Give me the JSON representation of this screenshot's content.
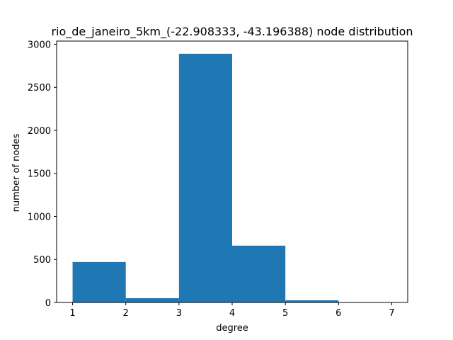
{
  "chart_data": {
    "type": "bar",
    "title": "rio_de_janeiro_5km_(-22.908333, -43.196388) node distribution",
    "xlabel": "degree",
    "ylabel": "number of nodes",
    "bins": [
      {
        "x0": 1,
        "x1": 2,
        "value": 470
      },
      {
        "x0": 2,
        "x1": 3,
        "value": 50
      },
      {
        "x0": 3,
        "x1": 4,
        "value": 2890
      },
      {
        "x0": 4,
        "x1": 5,
        "value": 660
      },
      {
        "x0": 5,
        "x1": 6,
        "value": 25
      },
      {
        "x0": 6,
        "x1": 7,
        "value": 2
      }
    ],
    "xlim": [
      0.7,
      7.3
    ],
    "ylim": [
      0,
      3037
    ],
    "xticks": [
      1,
      2,
      3,
      4,
      5,
      6,
      7
    ],
    "yticks": [
      0,
      500,
      1000,
      1500,
      2000,
      2500,
      3000
    ],
    "grid": false,
    "bar_color": "#1f77b4"
  }
}
